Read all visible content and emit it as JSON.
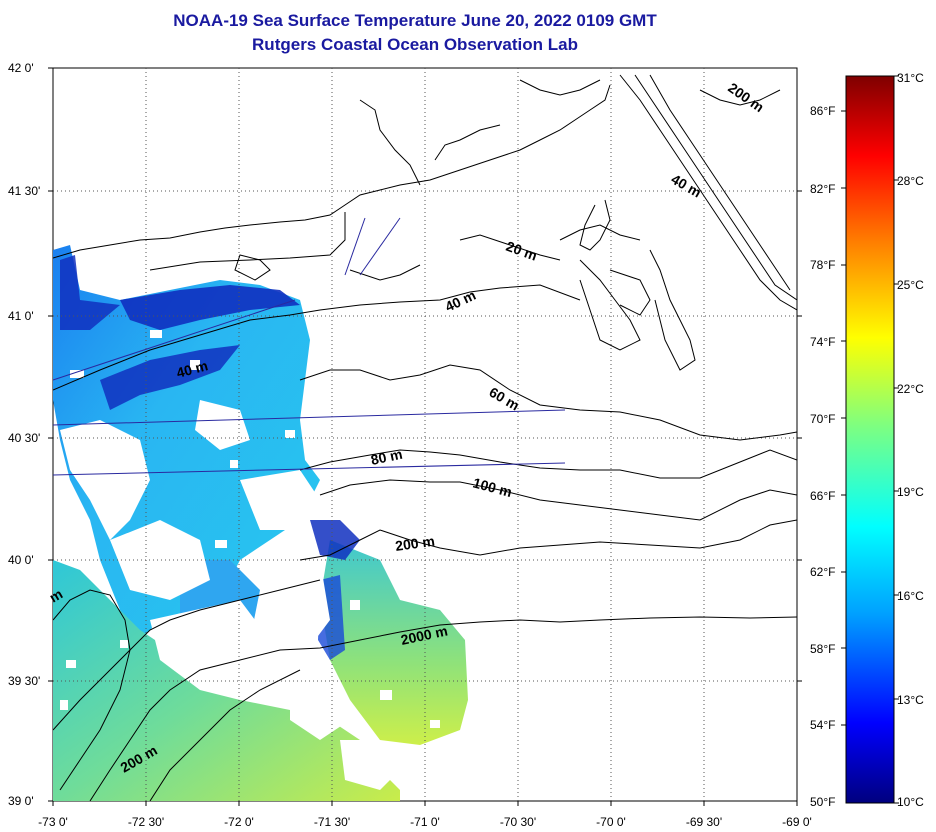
{
  "header": {
    "title": "NOAA-19 Sea Surface Temperature June 20, 2022 0109 GMT",
    "subtitle": "Rutgers Coastal Ocean Observation Lab"
  },
  "axes": {
    "lat_labels": [
      "42 0'",
      "41 30'",
      "41 0'",
      "40 30'",
      "40 0'",
      "39 30'",
      "39 0'"
    ],
    "lon_labels": [
      "-73 0'",
      "-72 30'",
      "-72 0'",
      "-71 30'",
      "-71 0'",
      "-70 30'",
      "-70 0'",
      "-69 30'",
      "-69 0'"
    ],
    "lat_range": [
      39.0,
      42.0
    ],
    "lon_range": [
      -73.0,
      -69.0
    ],
    "grid": "dotted"
  },
  "depth_labels": [
    "200 m",
    "40 m",
    "20 m",
    "40 m",
    "40 m",
    "60 m",
    "80 m",
    "100 m",
    "200 m",
    "2000 m",
    "200 m",
    "m"
  ],
  "fahrenheit_ticks": [
    "86°F",
    "82°F",
    "78°F",
    "74°F",
    "70°F",
    "66°F",
    "62°F",
    "58°F",
    "54°F",
    "50°F"
  ],
  "celsius_ticks": [
    "31°C",
    "28°C",
    "25°C",
    "22°C",
    "19°C",
    "16°C",
    "13°C",
    "10°C"
  ],
  "colorbar": {
    "min_c": 10,
    "max_c": 31,
    "colors": [
      "#00007f",
      "#0000ff",
      "#00a0ff",
      "#00ffff",
      "#7fff7f",
      "#ffff00",
      "#ff8000",
      "#ff0000",
      "#7f0000"
    ]
  },
  "colors": {
    "title": "#1a1aa0",
    "land": "#ffffff",
    "cloud": "#ffffff",
    "transect": "#2a2aa0"
  }
}
